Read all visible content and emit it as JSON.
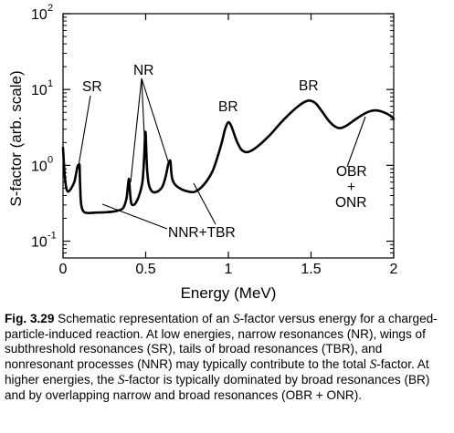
{
  "chart_data": {
    "type": "line",
    "xlabel": "Energy  (MeV)",
    "ylabel": "S-factor  (arb. scale)",
    "xlim": [
      0,
      2
    ],
    "ylim": [
      0.06,
      100
    ],
    "yscale": "log",
    "grid": false,
    "x_ticks": [
      0,
      0.5,
      1,
      1.5,
      2
    ],
    "x_tick_labels": [
      "0",
      "0.5",
      "1",
      "1.5",
      "2"
    ],
    "y_ticks": [
      0.1,
      1,
      10,
      100
    ],
    "y_tick_labels": [
      {
        "base": "10",
        "exp": "-1"
      },
      {
        "base": "10",
        "exp": "0"
      },
      {
        "base": "10",
        "exp": "1"
      },
      {
        "base": "10",
        "exp": "2"
      }
    ],
    "series": [
      {
        "x": [
          0.0,
          0.01,
          0.02,
          0.03,
          0.045,
          0.06,
          0.07,
          0.08,
          0.09,
          0.098,
          0.1,
          0.103,
          0.107,
          0.115,
          0.13,
          0.16,
          0.2,
          0.25,
          0.3,
          0.35,
          0.37,
          0.385,
          0.395,
          0.4,
          0.405,
          0.412,
          0.425,
          0.44,
          0.46,
          0.48,
          0.49,
          0.496,
          0.5,
          0.504,
          0.51,
          0.52,
          0.54,
          0.57,
          0.6,
          0.62,
          0.635,
          0.645,
          0.65,
          0.655,
          0.662,
          0.68,
          0.72,
          0.76,
          0.8,
          0.85,
          0.9,
          0.93,
          0.96,
          0.98,
          1.0,
          1.02,
          1.05,
          1.08,
          1.12,
          1.18,
          1.25,
          1.32,
          1.38,
          1.43,
          1.47,
          1.5,
          1.53,
          1.57,
          1.61,
          1.65,
          1.68,
          1.72,
          1.78,
          1.84,
          1.89,
          1.94,
          1.98,
          2.0
        ],
        "y": [
          1.7,
          0.75,
          0.5,
          0.45,
          0.48,
          0.55,
          0.62,
          0.8,
          1.0,
          0.98,
          1.0,
          0.6,
          0.35,
          0.27,
          0.24,
          0.235,
          0.238,
          0.24,
          0.245,
          0.26,
          0.29,
          0.38,
          0.6,
          0.65,
          0.45,
          0.32,
          0.3,
          0.32,
          0.4,
          0.6,
          1.2,
          2.5,
          2.6,
          1.5,
          0.8,
          0.55,
          0.45,
          0.45,
          0.52,
          0.7,
          1.0,
          1.15,
          1.1,
          0.8,
          0.65,
          0.55,
          0.48,
          0.45,
          0.45,
          0.55,
          0.8,
          1.2,
          2.0,
          3.0,
          3.7,
          3.2,
          2.1,
          1.6,
          1.5,
          1.8,
          2.5,
          3.7,
          5.0,
          6.2,
          7.0,
          7.1,
          6.5,
          5.0,
          3.8,
          3.2,
          3.1,
          3.4,
          4.2,
          5.0,
          5.3,
          5.0,
          4.5,
          4.1
        ]
      }
    ],
    "annotations": [
      "SR",
      "NR",
      "BR",
      "BR",
      "NNR+TBR",
      "OBR",
      "+",
      "ONR"
    ]
  },
  "caption": {
    "label": "Fig. 3.29",
    "t1": "  Schematic representation of an ",
    "s1": "S",
    "t2": "-factor versus energy for a charged-particle-induced reaction. At low energies, narrow resonances (NR), wings of subthreshold resonances (SR), tails of broad resonances (TBR), and nonresonant processes (NNR) may typically contribute to the total ",
    "s2": "S",
    "t3": "-factor. At higher energies, the ",
    "s3": "S",
    "t4": "-factor is typically dominated by broad resonances (BR) and by overlapping narrow and broad resonances (OBR + ONR)."
  }
}
